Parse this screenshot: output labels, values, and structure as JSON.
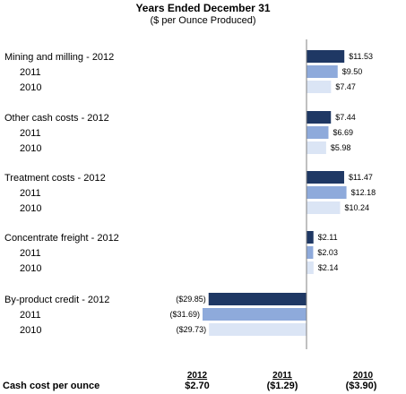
{
  "chart_data": {
    "type": "bar",
    "orientation": "horizontal",
    "title": "Years Ended December 31",
    "subtitle": "($ per Ounce Produced)",
    "xlim": [
      -32,
      14
    ],
    "series_colors": {
      "2012": "#1f3864",
      "2011": "#8eaadb",
      "2010": "#dbe5f5"
    },
    "groups": [
      {
        "bars": [
          {
            "label": "Mining and milling - 2012",
            "year": "2012",
            "value": 11.53,
            "value_label": "$11.53"
          },
          {
            "label": "2011",
            "year": "2011",
            "value": 9.5,
            "value_label": "$9.50"
          },
          {
            "label": "2010",
            "year": "2010",
            "value": 7.47,
            "value_label": "$7.47"
          }
        ]
      },
      {
        "bars": [
          {
            "label": "Other cash costs - 2012",
            "year": "2012",
            "value": 7.44,
            "value_label": "$7.44"
          },
          {
            "label": "2011",
            "year": "2011",
            "value": 6.69,
            "value_label": "$6.69"
          },
          {
            "label": "2010",
            "year": "2010",
            "value": 5.98,
            "value_label": "$5.98"
          }
        ]
      },
      {
        "bars": [
          {
            "label": "Treatment costs - 2012",
            "year": "2012",
            "value": 11.47,
            "value_label": "$11.47"
          },
          {
            "label": "2011",
            "year": "2011",
            "value": 12.18,
            "value_label": "$12.18"
          },
          {
            "label": "2010",
            "year": "2010",
            "value": 10.24,
            "value_label": "$10.24"
          }
        ]
      },
      {
        "bars": [
          {
            "label": "Concentrate freight - 2012",
            "year": "2012",
            "value": 2.11,
            "value_label": "$2.11"
          },
          {
            "label": "2011",
            "year": "2011",
            "value": 2.03,
            "value_label": "$2.03"
          },
          {
            "label": "2010",
            "year": "2010",
            "value": 2.14,
            "value_label": "$2.14"
          }
        ]
      },
      {
        "bars": [
          {
            "label": "By-product credit - 2012",
            "year": "2012",
            "value": -29.85,
            "value_label": "($29.85)"
          },
          {
            "label": "2011",
            "year": "2011",
            "value": -31.69,
            "value_label": "($31.69)"
          },
          {
            "label": "2010",
            "year": "2010",
            "value": -29.73,
            "value_label": "($29.73)"
          }
        ]
      }
    ]
  },
  "footer": {
    "label": "Cash cost per ounce",
    "columns": [
      {
        "year": "2012",
        "value": "$2.70"
      },
      {
        "year": "2011",
        "value": "($1.29)"
      },
      {
        "year": "2010",
        "value": "($3.90)"
      }
    ]
  }
}
